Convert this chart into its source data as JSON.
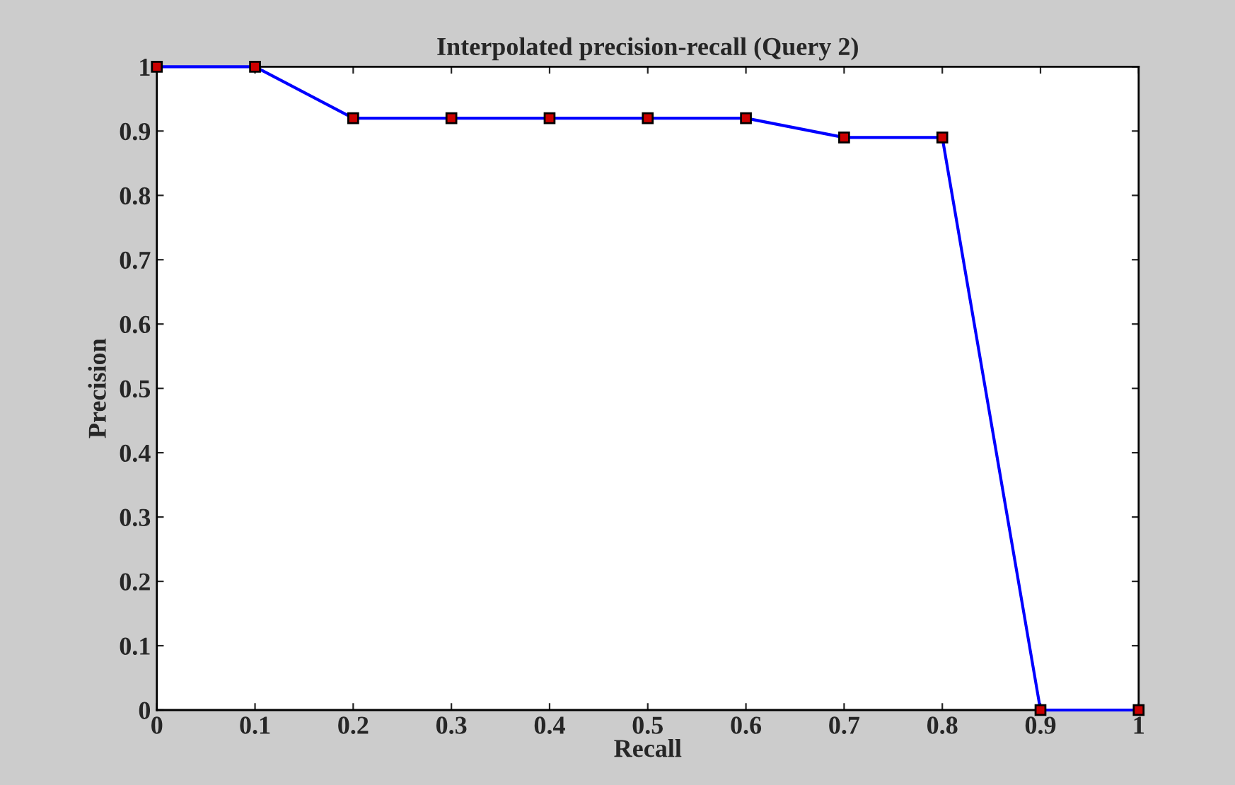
{
  "chart_data": {
    "type": "line",
    "title": "Interpolated precision-recall (Query 2)",
    "xlabel": "Recall",
    "ylabel": "Precision",
    "x": [
      0,
      0.1,
      0.2,
      0.3,
      0.4,
      0.5,
      0.6,
      0.7,
      0.8,
      0.9,
      1
    ],
    "series": [
      {
        "color": "#0000ff",
        "values": [
          1,
          1,
          0.92,
          0.92,
          0.92,
          0.92,
          0.92,
          0.89,
          0.89,
          0,
          0
        ]
      }
    ],
    "xlim": [
      0,
      1
    ],
    "ylim": [
      0,
      1
    ],
    "xticks": [
      0,
      0.1,
      0.2,
      0.3,
      0.4,
      0.5,
      0.6,
      0.7,
      0.8,
      0.9,
      1
    ],
    "yticks": [
      0,
      0.1,
      0.2,
      0.3,
      0.4,
      0.5,
      0.6,
      0.7,
      0.8,
      0.9,
      1
    ],
    "marker": "square",
    "line_style": "solid",
    "grid": false,
    "legend": false
  }
}
